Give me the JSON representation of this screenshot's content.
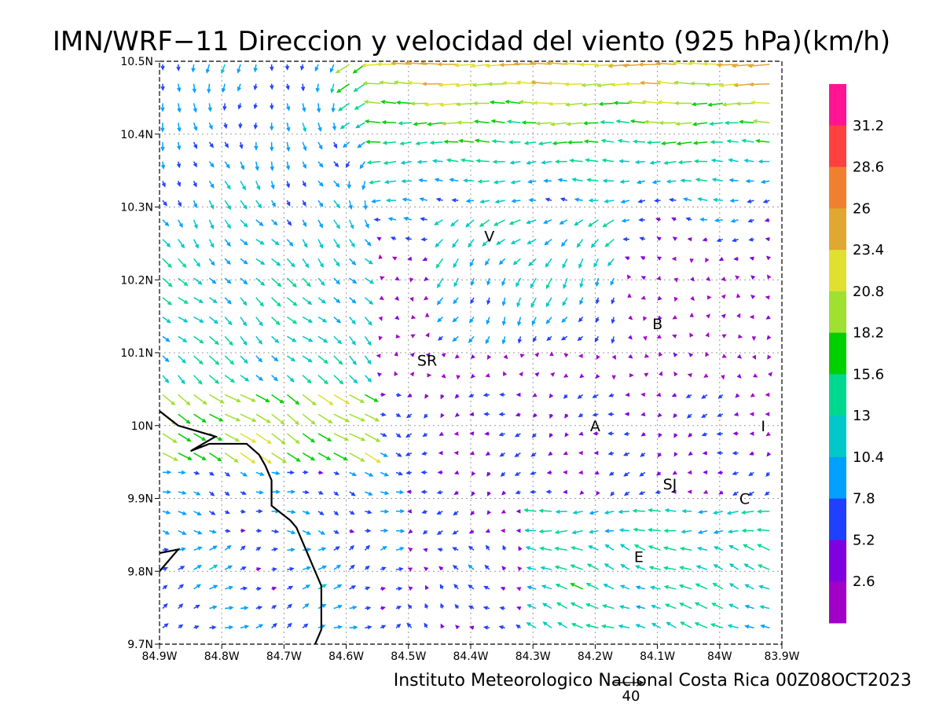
{
  "title": "IMN/WRF−11 Direccion y velocidad del viento (925 hPa)(km/h)",
  "footer": "Instituto Meteorologico Nacional Costa Rica 00Z08OCT2023",
  "reference_vector_label": "40",
  "lon_labels": [
    "84.9W",
    "84.8W",
    "84.7W",
    "84.6W",
    "84.5W",
    "84.4W",
    "84.3W",
    "84.2W",
    "84.1W",
    "84W",
    "83.9W"
  ],
  "lat_labels": [
    "10.5N",
    "10.4N",
    "10.3N",
    "10.2N",
    "10.1N",
    "10N",
    "9.9N",
    "9.8N",
    "9.7N"
  ],
  "legend": {
    "labels": [
      "31.2",
      "28.6",
      "26",
      "23.4",
      "20.8",
      "18.2",
      "15.6",
      "13",
      "10.4",
      "7.8",
      "5.2",
      "2.6"
    ],
    "colors": [
      "#ff1493",
      "#ff4040",
      "#f08030",
      "#e0a830",
      "#e0e030",
      "#a0e030",
      "#00d000",
      "#00d890",
      "#00c8c8",
      "#00a0ff",
      "#2040ff",
      "#8000e0",
      "#a000c8"
    ]
  },
  "places": [
    {
      "label": "V",
      "lon": -84.37,
      "lat": 10.26
    },
    {
      "label": "B",
      "lon": -84.1,
      "lat": 10.14
    },
    {
      "label": "SR",
      "lon": -84.47,
      "lat": 10.09
    },
    {
      "label": "A",
      "lon": -84.2,
      "lat": 10.0
    },
    {
      "label": "I",
      "lon": -83.93,
      "lat": 10.0
    },
    {
      "label": "SJ",
      "lon": -84.08,
      "lat": 9.92
    },
    {
      "label": "C",
      "lon": -83.96,
      "lat": 9.9
    },
    {
      "label": "E",
      "lon": -84.13,
      "lat": 9.82
    }
  ],
  "coastline": [
    [
      -84.9,
      10.02
    ],
    [
      -84.87,
      10.0
    ],
    [
      -84.83,
      9.99
    ],
    [
      -84.81,
      9.985
    ],
    [
      -84.85,
      9.965
    ],
    [
      -84.82,
      9.975
    ],
    [
      -84.76,
      9.975
    ],
    [
      -84.74,
      9.96
    ],
    [
      -84.73,
      9.945
    ],
    [
      -84.72,
      9.925
    ],
    [
      -84.72,
      9.89
    ],
    [
      -84.69,
      9.87
    ],
    [
      -84.68,
      9.86
    ],
    [
      -84.67,
      9.84
    ],
    [
      -84.66,
      9.82
    ],
    [
      -84.65,
      9.8
    ],
    [
      -84.64,
      9.78
    ],
    [
      -84.64,
      9.72
    ],
    [
      -84.65,
      9.7
    ]
  ],
  "coastline2": [
    [
      -84.9,
      9.825
    ],
    [
      -84.87,
      9.83
    ],
    [
      -84.9,
      9.8
    ]
  ]
}
